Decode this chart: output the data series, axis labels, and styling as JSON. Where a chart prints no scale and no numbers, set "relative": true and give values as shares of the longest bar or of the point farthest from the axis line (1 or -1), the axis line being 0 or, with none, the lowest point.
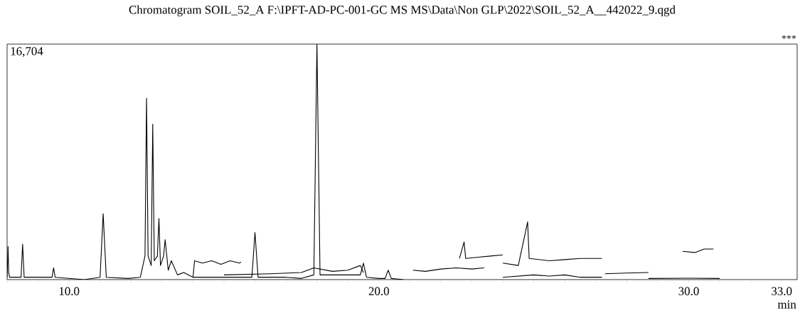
{
  "chart_data": {
    "type": "line",
    "title": "Chromatogram SOIL_52_A F:\\IPFT-AD-PC-001-GC MS MS\\Data\\Non GLP\\2022\\SOIL_52_A__442022_9.qgd",
    "annotations": [
      "16,704",
      "***"
    ],
    "xlabel": "min",
    "relative": true,
    "xlim": [
      8.0,
      33.5
    ],
    "xticks": [
      {
        "value": 8,
        "label": null
      },
      {
        "value": 9,
        "label": null
      },
      {
        "value": 10,
        "label": "10.0"
      },
      {
        "value": 11,
        "label": null
      },
      {
        "value": 12,
        "label": null
      },
      {
        "value": 13,
        "label": null
      },
      {
        "value": 14,
        "label": null
      },
      {
        "value": 15,
        "label": null
      },
      {
        "value": 16,
        "label": null
      },
      {
        "value": 17,
        "label": null
      },
      {
        "value": 18,
        "label": null
      },
      {
        "value": 19,
        "label": null
      },
      {
        "value": 20,
        "label": "20.0"
      },
      {
        "value": 21,
        "label": null
      },
      {
        "value": 22,
        "label": null
      },
      {
        "value": 23,
        "label": null
      },
      {
        "value": 24,
        "label": null
      },
      {
        "value": 25,
        "label": null
      },
      {
        "value": 26,
        "label": null
      },
      {
        "value": 27,
        "label": null
      },
      {
        "value": 28,
        "label": null
      },
      {
        "value": 29,
        "label": null
      },
      {
        "value": 30,
        "label": "30.0"
      },
      {
        "value": 31,
        "label": null
      },
      {
        "value": 32,
        "label": null
      },
      {
        "value": 33,
        "label": "33.0"
      }
    ],
    "series": [
      {
        "color": "#000000",
        "x": [
          8.0,
          8.03,
          8.05,
          8.08,
          8.2,
          8.45,
          8.5,
          8.55,
          9.0,
          9.45,
          9.5,
          9.55,
          10.5,
          11.0,
          11.1,
          11.2,
          11.9,
          12.3,
          12.45,
          12.5,
          12.55,
          12.65,
          12.7,
          12.75,
          12.85,
          12.9,
          12.95,
          13.05,
          13.1,
          13.2,
          13.3,
          13.5,
          13.7,
          14.0,
          14.5,
          15.0,
          15.5,
          15.9,
          16.0,
          16.1,
          17.0,
          17.5,
          17.9,
          18.0,
          18.1,
          18.5,
          19.0,
          19.4,
          19.5,
          19.6,
          20.0,
          20.2,
          20.3,
          20.4,
          20.8
        ],
        "values": [
          0.01,
          0.14,
          0.03,
          0.01,
          0.01,
          0.01,
          0.15,
          0.01,
          0.01,
          0.01,
          0.05,
          0.01,
          0.0,
          0.01,
          0.28,
          0.01,
          0.005,
          0.01,
          0.1,
          0.77,
          0.1,
          0.06,
          0.66,
          0.08,
          0.1,
          0.26,
          0.06,
          0.1,
          0.17,
          0.04,
          0.08,
          0.02,
          0.03,
          0.01,
          0.01,
          0.01,
          0.01,
          0.01,
          0.2,
          0.01,
          0.01,
          0.005,
          0.02,
          1.0,
          0.02,
          0.02,
          0.02,
          0.02,
          0.07,
          0.01,
          0.005,
          0.005,
          0.04,
          0.005,
          0.0
        ]
      },
      {
        "color": "#000000",
        "x": [
          14.0,
          14.05,
          14.3,
          14.6,
          14.9,
          15.2,
          15.5,
          15.55
        ],
        "values": [
          0.01,
          0.08,
          0.07,
          0.08,
          0.065,
          0.08,
          0.07,
          0.075
        ]
      },
      {
        "color": "#000000",
        "x": [
          15.0,
          16.5,
          17.5,
          17.9,
          18.5,
          19.0,
          19.4,
          19.5
        ],
        "values": [
          0.02,
          0.025,
          0.03,
          0.05,
          0.035,
          0.04,
          0.06,
          0.03
        ]
      },
      {
        "color": "#000000",
        "x": [
          21.1,
          21.5,
          22.0,
          22.5,
          23.0,
          23.4
        ],
        "values": [
          0.04,
          0.035,
          0.045,
          0.05,
          0.045,
          0.05
        ]
      },
      {
        "color": "#000000",
        "x": [
          22.6,
          22.75,
          22.8,
          23.2,
          23.6,
          24.0
        ],
        "values": [
          0.09,
          0.16,
          0.09,
          0.095,
          0.1,
          0.105
        ]
      },
      {
        "color": "#000000",
        "x": [
          24.0,
          24.5,
          24.8,
          24.85,
          25.5,
          26.0,
          26.5,
          27.2
        ],
        "values": [
          0.07,
          0.06,
          0.245,
          0.09,
          0.08,
          0.085,
          0.09,
          0.09
        ]
      },
      {
        "color": "#000000",
        "x": [
          24.0,
          25.0,
          25.5,
          26.0,
          26.5,
          27.2
        ],
        "values": [
          0.01,
          0.02,
          0.015,
          0.02,
          0.01,
          0.01
        ]
      },
      {
        "color": "#000000",
        "x": [
          27.3,
          28.0,
          28.7
        ],
        "values": [
          0.025,
          0.028,
          0.03
        ]
      },
      {
        "color": "#000000",
        "x": [
          28.7,
          30.0,
          31.0
        ],
        "values": [
          0.005,
          0.006,
          0.005
        ]
      },
      {
        "color": "#000000",
        "x": [
          29.8,
          30.2,
          30.5,
          30.8
        ],
        "values": [
          0.12,
          0.115,
          0.13,
          0.13
        ]
      }
    ]
  }
}
